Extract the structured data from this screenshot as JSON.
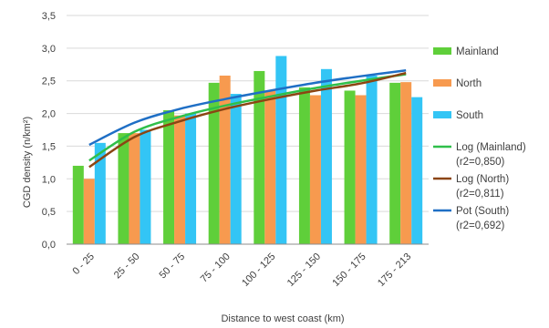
{
  "chart_data": {
    "type": "bar",
    "xlabel": "Distance to west coast (km)",
    "ylabel": "CGD density (n/km²)",
    "ylim": [
      0,
      3.5
    ],
    "yticks": [
      0,
      0.5,
      1,
      1.5,
      2,
      2.5,
      3,
      3.5
    ],
    "ytick_labels": [
      "0,0",
      "0,5",
      "1,0",
      "1,5",
      "2,0",
      "2,5",
      "3,0",
      "3,5"
    ],
    "grid": true,
    "legend_position": "right",
    "categories": [
      "0 - 25",
      "25 - 50",
      "50 - 75",
      "75 - 100",
      "100 - 125",
      "125 - 150",
      "150 - 175",
      "175 - 213"
    ],
    "series": [
      {
        "name": "Mainland",
        "color": "#5fcf3a",
        "values": [
          1.2,
          1.7,
          2.05,
          2.47,
          2.65,
          2.4,
          2.35,
          2.47
        ]
      },
      {
        "name": "North",
        "color": "#f79a4f",
        "values": [
          1.0,
          1.7,
          1.97,
          2.58,
          2.35,
          2.28,
          2.28,
          2.48
        ]
      },
      {
        "name": "South",
        "color": "#33c5f5",
        "values": [
          1.55,
          1.75,
          2.0,
          2.3,
          2.88,
          2.68,
          2.58,
          2.25
        ]
      }
    ],
    "trendlines": [
      {
        "name": "Log (Mainland)",
        "label_line2": "(r2=0,850)",
        "color": "#2fbf4a",
        "type": "log",
        "values": [
          1.28,
          1.72,
          1.95,
          2.12,
          2.26,
          2.39,
          2.5,
          2.6
        ]
      },
      {
        "name": "Log (North)",
        "label_line2": "(r2=0,811)",
        "color": "#8b4513",
        "type": "log",
        "values": [
          1.18,
          1.64,
          1.88,
          2.07,
          2.22,
          2.35,
          2.46,
          2.62
        ]
      },
      {
        "name": "Pot (South)",
        "label_line2": "(r2=0,692)",
        "color": "#1f6fc5",
        "type": "power",
        "values": [
          1.52,
          1.86,
          2.07,
          2.22,
          2.35,
          2.47,
          2.57,
          2.66
        ]
      }
    ]
  }
}
